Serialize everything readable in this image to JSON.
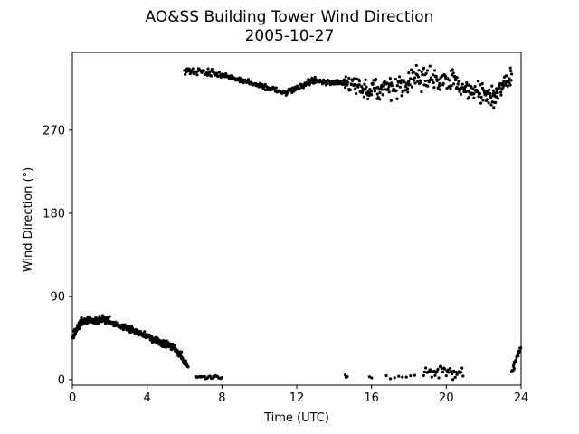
{
  "chart_data": {
    "type": "scatter",
    "title": "AO&SS Building Tower Wind Direction",
    "subtitle": "2005-10-27",
    "xlabel": "Time (UTC)",
    "ylabel": "Wind Direction (°)",
    "xlim": [
      0,
      24
    ],
    "ylim": [
      -6,
      354
    ],
    "xticks": [
      0,
      4,
      8,
      12,
      16,
      20,
      24
    ],
    "yticks": [
      0,
      90,
      180,
      270
    ],
    "grid": false,
    "marker_color": "#000000",
    "segments": [
      {
        "x0": 0.0,
        "x1": 0.5,
        "y0": 45,
        "y1": 65,
        "noise": 6,
        "n": 40,
        "seed": 11
      },
      {
        "x0": 0.5,
        "x1": 2.0,
        "y0": 63,
        "y1": 65,
        "noise": 6,
        "n": 90,
        "seed": 12
      },
      {
        "x0": 2.0,
        "x1": 3.5,
        "y0": 62,
        "y1": 52,
        "noise": 4,
        "n": 80,
        "seed": 13
      },
      {
        "x0": 3.5,
        "x1": 4.5,
        "y0": 52,
        "y1": 42,
        "noise": 5,
        "n": 60,
        "seed": 14
      },
      {
        "x0": 4.5,
        "x1": 5.5,
        "y0": 42,
        "y1": 35,
        "noise": 6,
        "n": 60,
        "seed": 15
      },
      {
        "x0": 5.5,
        "x1": 6.2,
        "y0": 33,
        "y1": 15,
        "noise": 7,
        "n": 40,
        "seed": 16
      },
      {
        "x0": 6.6,
        "x1": 8.0,
        "y0": 3,
        "y1": 3,
        "noise": 3,
        "n": 25,
        "seed": 17
      },
      {
        "x0": 6.0,
        "x1": 8.0,
        "y0": 335,
        "y1": 330,
        "noise": 6,
        "n": 55,
        "seed": 18
      },
      {
        "x0": 8.0,
        "x1": 10.0,
        "y0": 330,
        "y1": 318,
        "noise": 4,
        "n": 70,
        "seed": 19
      },
      {
        "x0": 10.0,
        "x1": 11.5,
        "y0": 318,
        "y1": 310,
        "noise": 4,
        "n": 50,
        "seed": 20
      },
      {
        "x0": 11.5,
        "x1": 13.0,
        "y0": 312,
        "y1": 325,
        "noise": 5,
        "n": 50,
        "seed": 21
      },
      {
        "x0": 13.0,
        "x1": 14.5,
        "y0": 322,
        "y1": 322,
        "noise": 4,
        "n": 50,
        "seed": 22
      },
      {
        "x0": 14.5,
        "x1": 16.0,
        "y0": 322,
        "y1": 312,
        "noise": 14,
        "n": 60,
        "seed": 23
      },
      {
        "x0": 16.0,
        "x1": 18.0,
        "y0": 315,
        "y1": 318,
        "noise": 20,
        "n": 70,
        "seed": 24
      },
      {
        "x0": 18.0,
        "x1": 20.5,
        "y0": 325,
        "y1": 325,
        "noise": 18,
        "n": 80,
        "seed": 25
      },
      {
        "x0": 20.5,
        "x1": 22.5,
        "y0": 320,
        "y1": 305,
        "noise": 16,
        "n": 70,
        "seed": 26
      },
      {
        "x0": 22.5,
        "x1": 23.5,
        "y0": 305,
        "y1": 330,
        "noise": 16,
        "n": 45,
        "seed": 27
      },
      {
        "x0": 14.6,
        "x1": 14.7,
        "y0": 3,
        "y1": 3,
        "noise": 3,
        "n": 3,
        "seed": 28
      },
      {
        "x0": 15.9,
        "x1": 16.0,
        "y0": 2,
        "y1": 2,
        "noise": 2,
        "n": 2,
        "seed": 29
      },
      {
        "x0": 16.8,
        "x1": 18.3,
        "y0": 3,
        "y1": 3,
        "noise": 3,
        "n": 8,
        "seed": 30
      },
      {
        "x0": 18.8,
        "x1": 20.9,
        "y0": 8,
        "y1": 8,
        "noise": 10,
        "n": 40,
        "seed": 31
      },
      {
        "x0": 23.5,
        "x1": 24.0,
        "y0": 8,
        "y1": 38,
        "noise": 7,
        "n": 25,
        "seed": 32
      }
    ]
  }
}
